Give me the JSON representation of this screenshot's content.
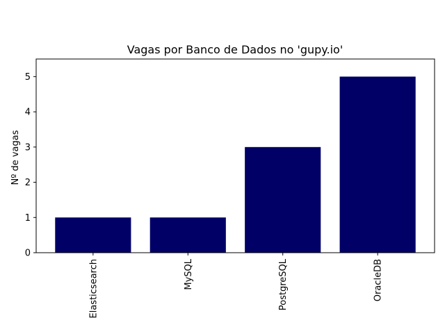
{
  "chart_data": {
    "type": "bar",
    "title": "Vagas por Banco de Dados no 'gupy.io'",
    "xlabel": "",
    "ylabel": "Nº de vagas",
    "categories": [
      "Elasticsearch",
      "MySQL",
      "PostgreSQL",
      "OracleDB"
    ],
    "values": [
      1,
      1,
      3,
      5
    ],
    "ylim": [
      0,
      5.5
    ],
    "yticks": [
      "0",
      "1",
      "2",
      "3",
      "4",
      "5"
    ],
    "grid": false,
    "legend": null,
    "bar_color": "#000066"
  }
}
